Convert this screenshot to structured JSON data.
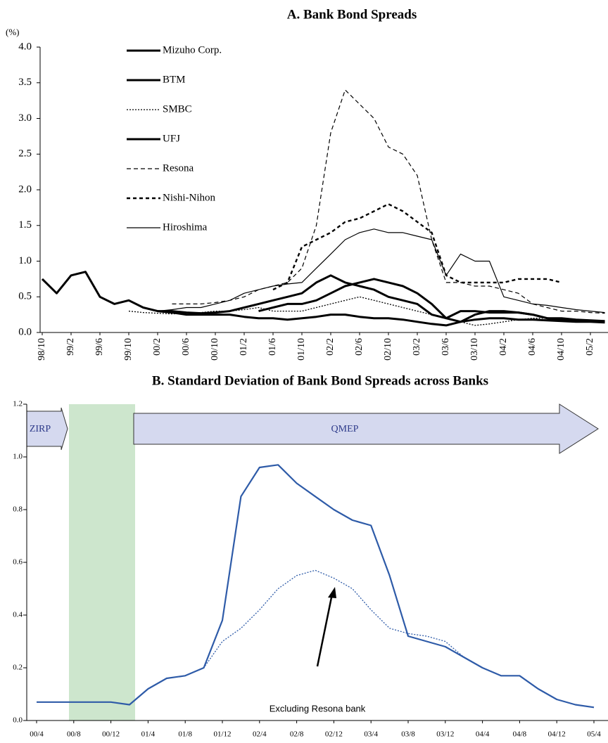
{
  "chart_data": [
    {
      "type": "line",
      "title": "A. Bank Bond Spreads",
      "y_label": "(%)",
      "legend": "upper left",
      "categories": [
        "98/10",
        null,
        "99/2",
        null,
        "99/6",
        null,
        "99/10",
        null,
        "00/2",
        null,
        "00/6",
        null,
        "00/10",
        null,
        "01/2",
        null,
        "01/6",
        null,
        "01/10",
        null,
        "02/2",
        null,
        "02/6",
        null,
        "02/10",
        null,
        "03/2",
        null,
        "03/6",
        null,
        "03/10",
        null,
        "04/2",
        null,
        "04/6",
        null,
        "04/10",
        null,
        "05/2",
        null
      ],
      "ylim": [
        0,
        4
      ],
      "yticks": [
        {
          "value": 0,
          "label": "0.0"
        },
        {
          "value": 0.5,
          "label": "0.5"
        },
        {
          "value": 1,
          "label": "1.0"
        },
        {
          "value": 1.5,
          "label": "1.5"
        },
        {
          "value": 2,
          "label": "2.0"
        },
        {
          "value": 2.5,
          "label": "2.5"
        },
        {
          "value": 3,
          "label": "3.0"
        },
        {
          "value": 3.5,
          "label": "3.5"
        },
        {
          "value": 4,
          "label": "4.0"
        }
      ],
      "series": [
        {
          "name": "Mizuho Corp.",
          "color": "#000000",
          "line_style": "thick",
          "values": [
            null,
            null,
            null,
            null,
            null,
            null,
            null,
            null,
            0.3,
            0.3,
            0.28,
            0.27,
            0.28,
            0.3,
            0.35,
            0.4,
            0.45,
            0.5,
            0.55,
            0.7,
            0.8,
            0.7,
            0.65,
            0.6,
            0.5,
            0.45,
            0.4,
            0.25,
            0.2,
            0.15,
            0.25,
            0.3,
            0.3,
            0.28,
            0.25,
            0.2,
            0.18,
            0.17,
            0.16,
            0.15
          ]
        },
        {
          "name": "BTM",
          "color": "#000000",
          "line_style": "thick",
          "values": [
            0.75,
            0.55,
            0.8,
            0.85,
            0.5,
            0.4,
            0.45,
            0.35,
            0.3,
            0.28,
            0.25,
            0.25,
            0.25,
            0.25,
            0.22,
            0.2,
            0.2,
            0.18,
            0.2,
            0.22,
            0.25,
            0.25,
            0.22,
            0.2,
            0.2,
            0.18,
            0.15,
            0.12,
            0.1,
            0.15,
            0.18,
            0.2,
            0.2,
            0.18,
            0.18,
            0.17,
            0.16,
            0.15,
            0.15,
            0.14
          ]
        },
        {
          "name": "SMBC",
          "color": "#000000",
          "line_style": "dotted",
          "values": [
            null,
            null,
            null,
            null,
            null,
            null,
            0.3,
            0.28,
            0.27,
            0.26,
            0.27,
            0.28,
            0.3,
            0.3,
            0.32,
            0.35,
            0.3,
            0.3,
            0.3,
            0.35,
            0.4,
            0.45,
            0.5,
            0.45,
            0.4,
            0.35,
            0.3,
            0.25,
            0.2,
            0.15,
            0.1,
            0.12,
            0.15,
            0.18,
            0.2,
            0.2,
            0.18,
            0.17,
            0.16,
            0.15
          ]
        },
        {
          "name": "UFJ",
          "color": "#000000",
          "line_style": "thick",
          "values": [
            null,
            null,
            null,
            null,
            null,
            null,
            null,
            null,
            null,
            null,
            null,
            null,
            null,
            null,
            null,
            0.3,
            0.35,
            0.4,
            0.4,
            0.45,
            0.55,
            0.65,
            0.7,
            0.75,
            0.7,
            0.65,
            0.55,
            0.4,
            0.2,
            0.3,
            0.3,
            0.28,
            0.28,
            0.28,
            0.25,
            0.2,
            0.2,
            0.18,
            0.17,
            0.16
          ]
        },
        {
          "name": "Resona",
          "color": "#000000",
          "line_style": "dashed",
          "values": [
            null,
            null,
            null,
            null,
            null,
            null,
            null,
            null,
            null,
            0.4,
            0.4,
            0.4,
            0.42,
            0.45,
            0.5,
            0.6,
            0.65,
            0.7,
            0.9,
            1.5,
            2.8,
            3.4,
            3.2,
            3.0,
            2.6,
            2.5,
            2.2,
            1.3,
            0.7,
            0.7,
            0.65,
            0.65,
            0.6,
            0.55,
            0.4,
            0.35,
            0.3,
            0.3,
            0.28,
            0.27
          ]
        },
        {
          "name": "Nishi-Nihon",
          "color": "#000000",
          "line_style": "heavy-dashed",
          "values": [
            null,
            null,
            null,
            null,
            null,
            null,
            null,
            null,
            null,
            null,
            null,
            null,
            null,
            null,
            null,
            null,
            0.6,
            0.7,
            1.2,
            1.3,
            1.4,
            1.55,
            1.6,
            1.7,
            1.8,
            1.7,
            1.55,
            1.4,
            0.8,
            0.7,
            0.7,
            0.7,
            0.7,
            0.75,
            0.75,
            0.75,
            0.7,
            null,
            null,
            null
          ]
        },
        {
          "name": "Hiroshima",
          "color": "#000000",
          "line_style": "thin",
          "values": [
            null,
            null,
            null,
            null,
            null,
            null,
            null,
            null,
            0.3,
            0.32,
            0.35,
            0.35,
            0.4,
            0.45,
            0.55,
            0.6,
            0.65,
            0.68,
            0.7,
            0.9,
            1.1,
            1.3,
            1.4,
            1.45,
            1.4,
            1.4,
            1.35,
            1.3,
            0.8,
            1.1,
            1.0,
            1.0,
            0.5,
            0.45,
            0.4,
            0.38,
            0.35,
            0.32,
            0.3,
            0.28
          ]
        }
      ]
    },
    {
      "type": "line",
      "title": "B. Standard Deviation of Bank Bond Spreads across Banks",
      "annotations": [
        "ZIRP",
        "QMEP",
        "Excluding Resona bank"
      ],
      "categories": [
        "00/4",
        null,
        "00/8",
        null,
        "00/12",
        null,
        "01/4",
        null,
        "01/8",
        null,
        "01/12",
        null,
        "02/4",
        null,
        "02/8",
        null,
        "02/12",
        null,
        "03/4",
        null,
        "03/8",
        null,
        "03/12",
        null,
        "04/4",
        null,
        "04/8",
        null,
        "04/12",
        null,
        "05/4"
      ],
      "ylim": [
        0,
        1.2
      ],
      "yticks": [
        {
          "value": 0,
          "label": "0.0"
        },
        {
          "value": 0.2,
          "label": "0.2"
        },
        {
          "value": 0.4,
          "label": "0.4"
        },
        {
          "value": 0.6,
          "label": "0.6"
        },
        {
          "value": 0.8,
          "label": "0.8"
        },
        {
          "value": 1,
          "label": "1.0"
        },
        {
          "value": 1.2,
          "label": "1.2"
        }
      ],
      "series": [
        {
          "color": "#2e5ba8",
          "line_style": "solid",
          "values": [
            0.07,
            0.07,
            0.07,
            0.07,
            0.07,
            0.06,
            0.12,
            0.16,
            0.17,
            0.2,
            0.38,
            0.85,
            0.96,
            0.97,
            0.9,
            0.85,
            0.8,
            0.76,
            0.74,
            0.55,
            0.32,
            0.3,
            0.28,
            0.24,
            0.2,
            0.17,
            0.17,
            0.12,
            0.08,
            0.06,
            0.05
          ]
        },
        {
          "color": "#2e5ba8",
          "line_style": "dotted",
          "values": [
            0.07,
            0.07,
            0.07,
            0.07,
            0.07,
            0.06,
            0.12,
            0.16,
            0.17,
            0.2,
            0.3,
            0.35,
            0.42,
            0.5,
            0.55,
            0.57,
            0.54,
            0.5,
            0.42,
            0.35,
            0.33,
            0.32,
            0.3,
            0.24,
            0.2,
            0.17,
            0.17,
            0.12,
            0.08,
            0.06,
            0.05
          ]
        }
      ]
    }
  ]
}
